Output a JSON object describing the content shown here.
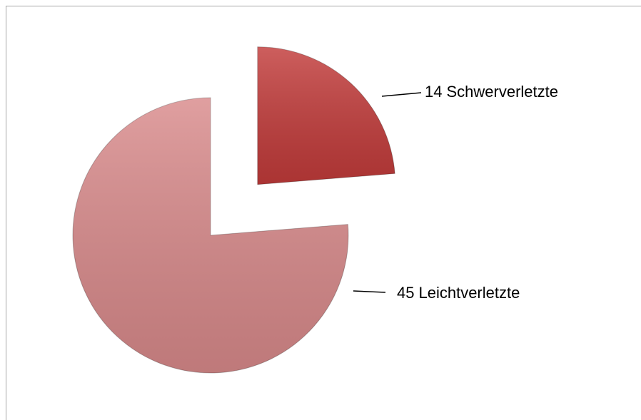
{
  "chart_data": {
    "type": "pie",
    "categories": [
      "Schwerverletzte",
      "Leichtverletzte"
    ],
    "values": [
      14,
      45
    ],
    "colors": [
      "#c23b3a",
      "#d98a8b"
    ],
    "exploded": [
      true,
      false
    ]
  }
}
